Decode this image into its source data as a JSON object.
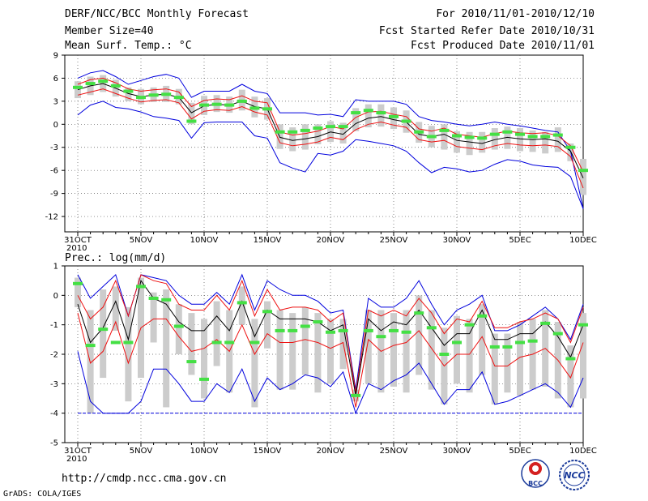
{
  "header": {
    "title": "DERF/NCC/BCC Monthly Forecast",
    "member_size": "Member Size=40",
    "variable": "Mean Surf. Temp.: °C",
    "period": "For 2010/11/01-2010/12/10",
    "refer_date": "Fcst Started Refer Date 2010/10/31",
    "produced_date": "Fcst Produced Date 2010/11/01"
  },
  "footer": {
    "url": "http://cmdp.ncc.cma.gov.cn",
    "grads": "GrADS: COLA/IGES",
    "logo_bcc": "BCC",
    "logo_ncc": "NCC"
  },
  "colors": {
    "box": "#cccccc",
    "median": "#44e044",
    "mean": "#000000",
    "std": "#ee1111",
    "extreme": "#0000dd"
  },
  "chart_data": [
    {
      "type": "box-plume",
      "title": "Mean Surf. Temp.: °C",
      "x_tick_labels": [
        "31OCT\n2010",
        "5NOV",
        "10NOV",
        "15NOV",
        "20NOV",
        "25NOV",
        "30NOV",
        "5DEC",
        "10DEC"
      ],
      "x_tick_days": [
        0,
        5,
        10,
        15,
        20,
        25,
        30,
        35,
        40
      ],
      "ylim": [
        -14,
        9
      ],
      "yticks": [
        9,
        6,
        3,
        0,
        -3,
        -6,
        -9,
        -12
      ],
      "mean": [
        4.5,
        5.0,
        5.3,
        4.7,
        4.0,
        3.6,
        3.8,
        3.9,
        3.5,
        1.5,
        2.4,
        2.6,
        2.5,
        3.0,
        2.3,
        2.0,
        -1.7,
        -2.1,
        -1.9,
        -1.6,
        -1.0,
        -1.3,
        0.1,
        0.8,
        1.0,
        0.6,
        0.3,
        -1.3,
        -1.6,
        -1.3,
        -2.1,
        -2.3,
        -2.5,
        -2.0,
        -1.7,
        -1.9,
        -2.0,
        -1.9,
        -2.2,
        -3.5,
        -7.0
      ],
      "std_upper": [
        5.2,
        5.8,
        6.0,
        5.4,
        4.6,
        4.3,
        4.5,
        4.6,
        4.2,
        2.3,
        3.1,
        3.3,
        3.2,
        3.7,
        3.0,
        2.8,
        -1.0,
        -1.4,
        -1.2,
        -0.9,
        -0.3,
        -0.6,
        0.9,
        1.6,
        1.7,
        1.3,
        1.0,
        -0.6,
        -0.9,
        -0.5,
        -1.3,
        -1.5,
        -1.7,
        -1.2,
        -0.9,
        -1.1,
        -1.2,
        -1.1,
        -1.5,
        -2.8,
        -6.2
      ],
      "std_lower": [
        3.8,
        4.2,
        4.6,
        4.0,
        3.4,
        2.9,
        3.1,
        3.2,
        2.8,
        0.7,
        1.7,
        1.9,
        1.8,
        2.3,
        1.6,
        1.2,
        -2.4,
        -2.8,
        -2.6,
        -2.3,
        -1.7,
        -2.0,
        -0.7,
        0.0,
        0.3,
        -0.1,
        -0.4,
        -2.0,
        -2.3,
        -2.1,
        -2.9,
        -3.1,
        -3.3,
        -2.8,
        -2.5,
        -2.7,
        -2.8,
        -2.7,
        -2.9,
        -4.2,
        -8.3
      ],
      "max": [
        6.0,
        6.7,
        7.0,
        6.2,
        5.2,
        5.7,
        6.2,
        6.5,
        6.0,
        3.5,
        4.3,
        4.3,
        4.3,
        5.2,
        4.3,
        4.0,
        1.5,
        1.5,
        1.5,
        1.2,
        1.3,
        1.0,
        3.2,
        3.0,
        3.0,
        3.0,
        2.6,
        1.0,
        0.5,
        0.3,
        0.0,
        -0.2,
        0.0,
        0.3,
        0.0,
        -0.2,
        -0.5,
        -0.8,
        -1.0,
        -3.5,
        -11.0
      ],
      "min": [
        1.2,
        2.5,
        3.0,
        2.2,
        2.0,
        1.6,
        1.0,
        0.8,
        0.5,
        -1.8,
        0.2,
        0.3,
        0.3,
        0.3,
        -1.5,
        -1.8,
        -5.0,
        -5.7,
        -6.2,
        -3.8,
        -4.0,
        -3.5,
        -2.0,
        -2.2,
        -2.5,
        -2.8,
        -3.5,
        -5.0,
        -6.3,
        -5.6,
        -5.8,
        -6.2,
        -6.0,
        -5.2,
        -4.6,
        -4.8,
        -5.3,
        -5.5,
        -5.6,
        -6.8,
        -11.0
      ],
      "box_top": [
        5.6,
        6.2,
        6.4,
        5.8,
        4.8,
        4.6,
        4.8,
        5.0,
        4.6,
        2.8,
        3.7,
        3.8,
        3.6,
        4.5,
        3.6,
        3.4,
        0.0,
        -0.4,
        0.0,
        0.0,
        0.4,
        0.2,
        2.1,
        2.6,
        2.6,
        2.2,
        1.8,
        0.3,
        -0.2,
        0.0,
        -0.9,
        -1.0,
        -1.0,
        -0.5,
        -0.3,
        -0.5,
        -0.8,
        -1.0,
        -0.4,
        -2.5,
        -4.5
      ],
      "box_bottom": [
        3.4,
        3.8,
        4.2,
        3.6,
        3.0,
        2.6,
        2.9,
        2.9,
        2.6,
        0.0,
        1.2,
        1.6,
        1.5,
        1.8,
        0.9,
        0.6,
        -3.2,
        -3.5,
        -3.3,
        -2.6,
        -2.3,
        -2.5,
        -0.9,
        -0.4,
        -0.3,
        -0.6,
        -1.1,
        -2.4,
        -3.0,
        -3.3,
        -3.7,
        -4.0,
        -3.7,
        -3.3,
        -3.2,
        -3.5,
        -3.6,
        -3.8,
        -3.6,
        -4.8,
        -9.2
      ],
      "median": [
        4.8,
        5.3,
        5.6,
        5.0,
        4.3,
        3.5,
        3.8,
        3.9,
        3.5,
        0.4,
        2.5,
        2.6,
        2.5,
        3.0,
        2.1,
        2.0,
        -1.0,
        -1.0,
        -0.8,
        -0.5,
        -0.3,
        -0.3,
        1.5,
        1.8,
        1.5,
        1.0,
        0.4,
        -1.0,
        -1.6,
        -0.8,
        -1.5,
        -1.7,
        -1.8,
        -1.3,
        -1.0,
        -1.3,
        -1.6,
        -1.6,
        -1.4,
        -3.0,
        -6.0
      ]
    },
    {
      "type": "box-plume",
      "title": "Prec.: log(mm/d)",
      "x_tick_labels": [
        "31OCT\n2010",
        "5NOV",
        "10NOV",
        "15NOV",
        "20NOV",
        "25NOV",
        "30NOV",
        "5DEC",
        "10DEC"
      ],
      "x_tick_days": [
        0,
        5,
        10,
        15,
        20,
        25,
        30,
        35,
        40
      ],
      "ylim": [
        -5,
        1
      ],
      "yticks": [
        1,
        0,
        -1,
        -2,
        -3,
        -4,
        -5
      ],
      "mean": [
        -0.3,
        -1.6,
        -1.1,
        -0.2,
        -1.5,
        0.5,
        -0.1,
        -0.3,
        -0.9,
        -1.2,
        -1.2,
        -0.7,
        -1.2,
        -0.2,
        -1.4,
        -0.5,
        -0.8,
        -0.8,
        -0.8,
        -0.9,
        -1.2,
        -1.0,
        -3.4,
        -0.8,
        -1.2,
        -0.9,
        -1.0,
        -0.5,
        -1.1,
        -1.7,
        -1.3,
        -1.3,
        -0.5,
        -1.5,
        -1.5,
        -1.3,
        -1.3,
        -0.9,
        -1.4,
        -2.1,
        -1.0
      ],
      "std_upper": [
        0.0,
        -0.8,
        -0.4,
        0.5,
        -0.7,
        0.7,
        0.5,
        0.4,
        -0.3,
        -0.5,
        -0.5,
        0.0,
        -0.5,
        0.5,
        -0.7,
        0.2,
        -0.5,
        -0.4,
        -0.4,
        -0.5,
        -0.9,
        -0.6,
        -3.3,
        -0.5,
        -0.7,
        -0.5,
        -0.7,
        -0.1,
        -0.6,
        -1.3,
        -0.8,
        -0.9,
        -0.2,
        -1.1,
        -1.1,
        -0.9,
        -0.8,
        -0.6,
        -0.8,
        -1.6,
        -0.4
      ],
      "std_lower": [
        -0.6,
        -2.3,
        -1.9,
        -0.9,
        -2.3,
        -1.1,
        -0.8,
        -0.8,
        -1.4,
        -1.9,
        -1.8,
        -1.5,
        -1.9,
        -1.0,
        -2.0,
        -1.3,
        -1.6,
        -1.6,
        -1.5,
        -1.6,
        -1.8,
        -1.6,
        -3.8,
        -1.5,
        -1.9,
        -1.7,
        -1.6,
        -1.2,
        -1.8,
        -2.4,
        -2.0,
        -2.0,
        -1.4,
        -2.4,
        -2.4,
        -2.1,
        -2.0,
        -1.8,
        -2.2,
        -2.8,
        -1.6
      ],
      "max": [
        0.7,
        -0.1,
        0.3,
        0.7,
        -0.7,
        0.7,
        0.6,
        0.5,
        0.0,
        -0.3,
        -0.3,
        0.1,
        -0.3,
        0.7,
        -0.5,
        0.5,
        0.2,
        0.0,
        0.0,
        -0.2,
        -0.6,
        -0.5,
        -3.2,
        -0.1,
        -0.4,
        -0.4,
        -0.1,
        0.5,
        -0.3,
        -1.0,
        -0.5,
        -0.3,
        0.0,
        -1.2,
        -1.2,
        -1.0,
        -0.7,
        -0.4,
        -0.8,
        -1.5,
        -0.3
      ],
      "min": [
        -1.9,
        -3.6,
        -4.0,
        -4.0,
        -4.0,
        -3.6,
        -2.5,
        -2.5,
        -3.0,
        -3.6,
        -3.6,
        -3.0,
        -3.3,
        -2.5,
        -3.6,
        -2.8,
        -3.2,
        -3.0,
        -2.7,
        -2.8,
        -3.1,
        -2.6,
        -4.0,
        -3.0,
        -3.2,
        -2.9,
        -2.7,
        -2.3,
        -3.0,
        -3.7,
        -3.2,
        -3.2,
        -2.6,
        -3.7,
        -3.6,
        -3.4,
        -3.2,
        -3.0,
        -3.3,
        -3.8,
        -2.8
      ],
      "box_top": [
        0.6,
        -0.5,
        0.2,
        0.3,
        -0.4,
        0.6,
        0.1,
        0.2,
        -0.3,
        -0.6,
        -0.8,
        -0.2,
        -0.5,
        0.3,
        -0.8,
        -0.2,
        -0.5,
        -0.6,
        -0.4,
        -0.6,
        -0.8,
        -0.8,
        -3.2,
        -0.5,
        -0.5,
        -0.6,
        -0.5,
        0.0,
        -0.5,
        -1.1,
        -0.7,
        -0.8,
        -0.3,
        -1.3,
        -1.3,
        -0.9,
        -0.8,
        -0.5,
        -0.9,
        -1.7,
        -0.6
      ],
      "box_bottom": [
        -0.4,
        -4.0,
        -2.8,
        -1.2,
        -3.6,
        -2.8,
        -1.6,
        -3.8,
        -2.0,
        -2.7,
        -3.5,
        -2.4,
        -3.3,
        -1.0,
        -3.8,
        -1.8,
        -3.2,
        -3.2,
        -2.7,
        -3.3,
        -3.0,
        -2.5,
        -3.6,
        -3.0,
        -3.3,
        -3.1,
        -3.3,
        -2.7,
        -3.2,
        -3.7,
        -3.0,
        -3.3,
        -2.7,
        -3.7,
        -3.3,
        -3.4,
        -3.2,
        -3.1,
        -3.5,
        -3.8,
        -3.5
      ],
      "median": [
        0.4,
        -1.7,
        -1.15,
        -1.6,
        -1.6,
        0.3,
        -0.1,
        -0.15,
        -1.05,
        -2.25,
        -2.85,
        -1.6,
        -1.6,
        -0.25,
        -1.6,
        -0.55,
        -1.2,
        -1.2,
        -1.05,
        -0.9,
        -1.25,
        -1.2,
        -3.4,
        -1.2,
        -1.4,
        -1.2,
        -1.25,
        -0.6,
        -1.1,
        -2.0,
        -1.6,
        -1.0,
        -0.7,
        -1.75,
        -1.75,
        -1.6,
        -1.55,
        -0.95,
        -1.3,
        -2.15,
        -1.0
      ]
    }
  ]
}
